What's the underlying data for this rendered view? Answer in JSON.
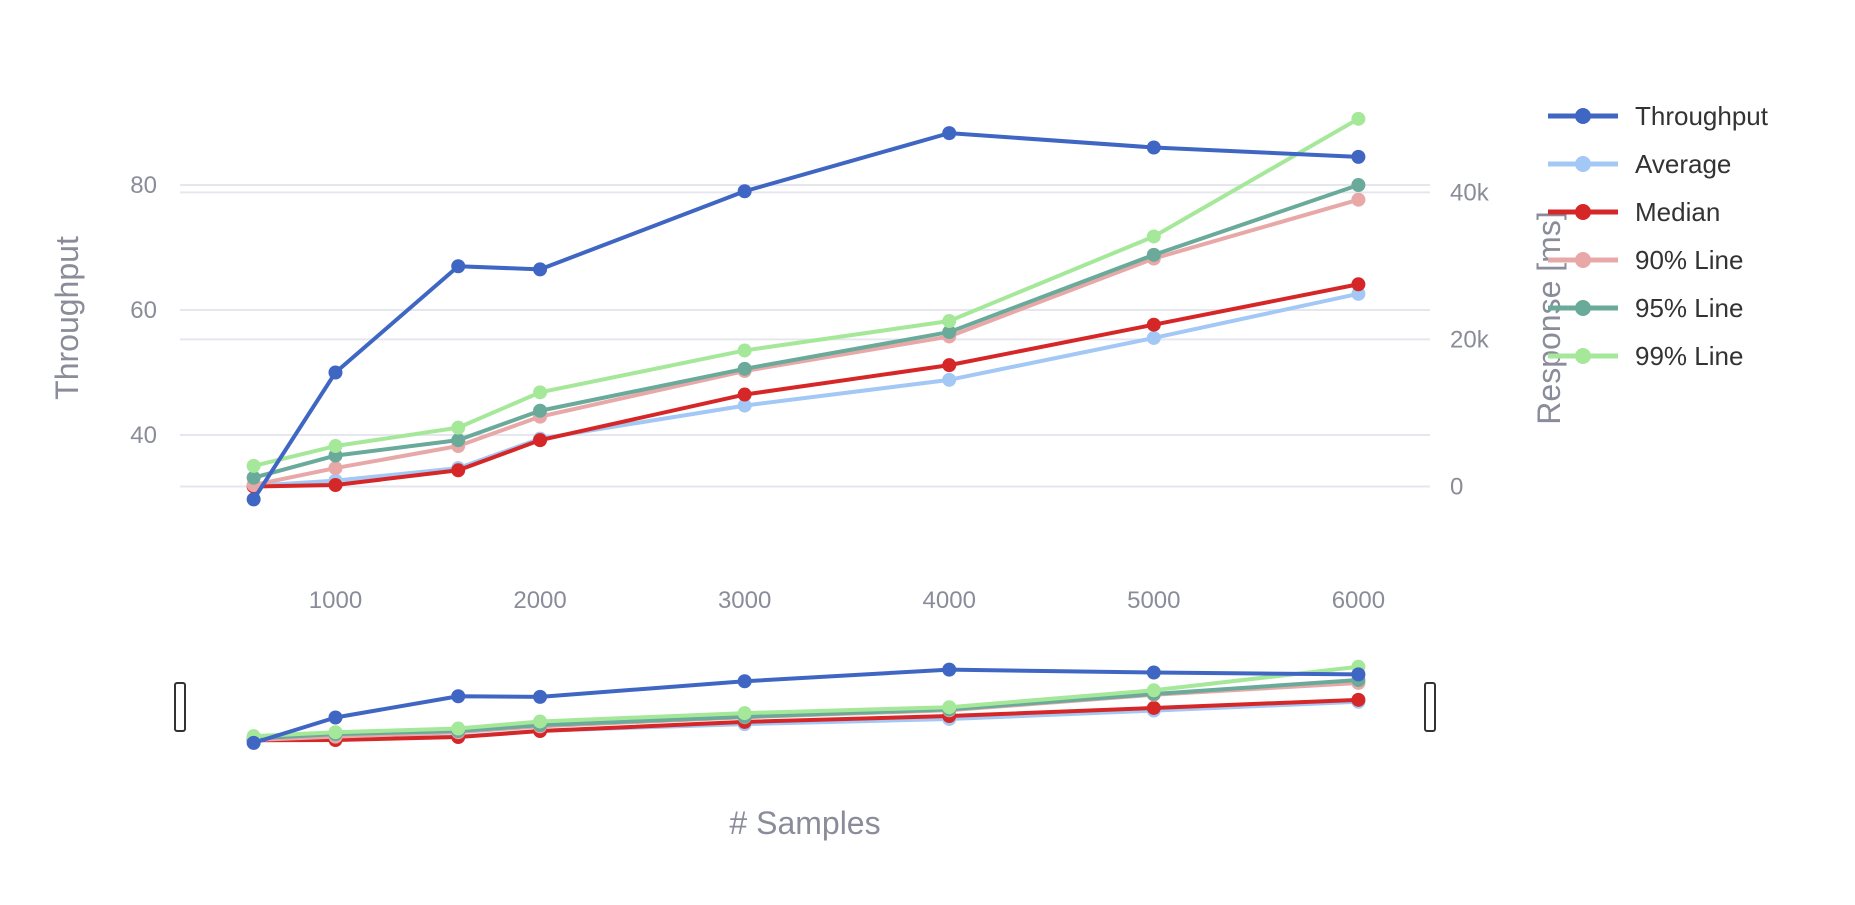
{
  "chart_data": {
    "type": "line",
    "xlabel": "# Samples",
    "ylabel_left": "Throughput",
    "ylabel_right": "Response [ms]",
    "x": [
      600,
      1000,
      1600,
      2000,
      3000,
      4000,
      5000,
      6000
    ],
    "x_ticks": [
      1000,
      2000,
      3000,
      4000,
      5000,
      6000
    ],
    "xlim": [
      240,
      6350
    ],
    "y_left": {
      "ticks": [
        40,
        60,
        80
      ],
      "tick_labels": [
        "40",
        "60",
        "80"
      ],
      "ylim": [
        20,
        100
      ]
    },
    "y_right": {
      "ticks": [
        0,
        20000,
        40000
      ],
      "tick_labels": [
        "0",
        "20k",
        "40k"
      ],
      "ylim": [
        -10000,
        58000
      ]
    },
    "grid": true,
    "legend_position": "right",
    "range_slider": true,
    "series": [
      {
        "name": "Throughput",
        "axis": "left",
        "color": "#4066c4",
        "values": [
          29.7,
          50,
          67,
          66.5,
          79,
          88.3,
          86,
          84.5
        ]
      },
      {
        "name": "Average",
        "axis": "right",
        "color": "#a3c8f5",
        "values": [
          100,
          800,
          2500,
          6500,
          11000,
          14500,
          20200,
          26200
        ]
      },
      {
        "name": "Median",
        "axis": "right",
        "color": "#d62728",
        "values": [
          0,
          200,
          2200,
          6300,
          12500,
          16500,
          22000,
          27500
        ]
      },
      {
        "name": "90% Line",
        "axis": "right",
        "color": "#e8a8a8",
        "values": [
          200,
          2500,
          5500,
          9500,
          15700,
          20400,
          31000,
          39000
        ]
      },
      {
        "name": "95% Line",
        "axis": "right",
        "color": "#6aaa9a",
        "values": [
          1200,
          4200,
          6300,
          10300,
          16000,
          21000,
          31500,
          41000
        ]
      },
      {
        "name": "99% Line",
        "axis": "right",
        "color": "#a6e89a",
        "values": [
          2800,
          5500,
          8000,
          12800,
          18500,
          22500,
          34000,
          50000
        ]
      }
    ]
  }
}
